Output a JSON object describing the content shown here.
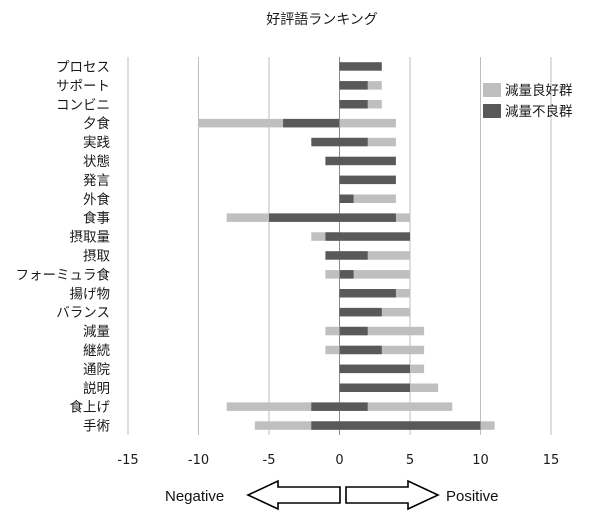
{
  "chart_data": {
    "type": "bar",
    "orientation": "horizontal",
    "stacking": "diverging-overlap",
    "title": "好評語ランキング",
    "xlabel": "",
    "ylabel": "",
    "xlim": [
      -15,
      15
    ],
    "xticks": [
      -15,
      -10,
      -5,
      0,
      5,
      10,
      15
    ],
    "grid": true,
    "legend_position": "right",
    "categories": [
      "プロセス",
      "サポート",
      "コンビニ",
      "夕食",
      "実践",
      "状態",
      "発言",
      "外食",
      "食事",
      "摂取量",
      "摂取",
      "フォーミュラ食",
      "揚げ物",
      "バランス",
      "減量",
      "継続",
      "通院",
      "説明",
      "食上げ",
      "手術"
    ],
    "series": [
      {
        "name": "減量良好群",
        "color": "#bfbfbf",
        "neg": [
          0,
          0,
          0,
          -10,
          0,
          0,
          0,
          0,
          -8,
          -2,
          0,
          -1,
          0,
          0,
          -1,
          -1,
          0,
          0,
          -8,
          -6
        ],
        "pos": [
          0,
          3,
          3,
          4,
          4,
          0,
          0,
          4,
          5,
          0,
          5,
          5,
          5,
          5,
          6,
          6,
          6,
          7,
          8,
          11
        ]
      },
      {
        "name": "減量不良群",
        "color": "#595959",
        "neg": [
          0,
          0,
          0,
          -4,
          -2,
          -1,
          0,
          0,
          -5,
          -1,
          -1,
          0,
          0,
          0,
          0,
          0,
          0,
          0,
          -2,
          -2
        ],
        "pos": [
          3,
          2,
          2,
          0,
          2,
          4,
          4,
          1,
          4,
          5,
          2,
          1,
          4,
          3,
          2,
          3,
          5,
          5,
          2,
          10
        ]
      }
    ],
    "annotations": {
      "negative": "Negative",
      "positive": "Positive"
    }
  }
}
